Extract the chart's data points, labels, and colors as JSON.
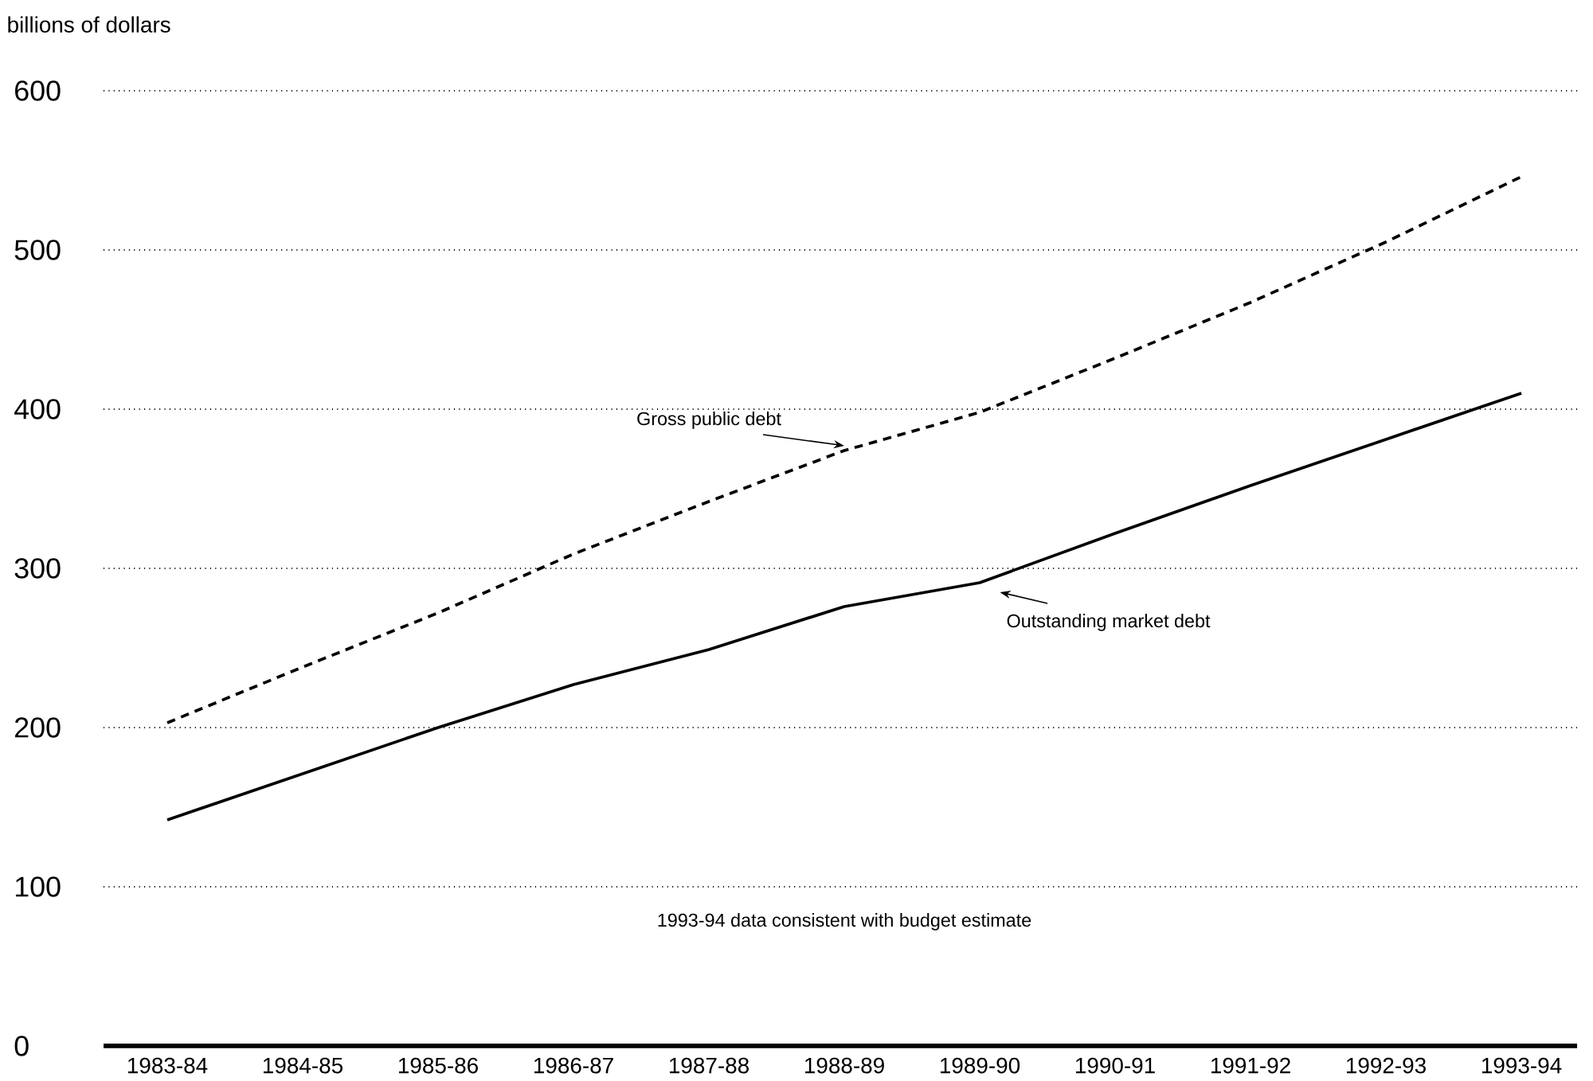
{
  "chart_data": {
    "type": "line",
    "ylabel": "billions of dollars",
    "categories": [
      "1983-84",
      "1984-85",
      "1985-86",
      "1986-87",
      "1987-88",
      "1988-89",
      "1989-90",
      "1990-91",
      "1991-92",
      "1992-93",
      "1993-94"
    ],
    "series": [
      {
        "name": "Gross public debt",
        "color": "#000000",
        "line_style": "dashed",
        "values": [
          203,
          238,
          272,
          309,
          342,
          374,
          398,
          432,
          467,
          505,
          546
        ]
      },
      {
        "name": "Outstanding market debt",
        "color": "#000000",
        "line_style": "solid",
        "values": [
          142,
          171,
          200,
          227,
          249,
          276,
          291,
          322,
          352,
          381,
          410
        ]
      }
    ],
    "ylim": [
      0,
      600
    ],
    "yticks": [
      0,
      100,
      200,
      300,
      400,
      500,
      600
    ],
    "grid": "y",
    "marker": "none",
    "annotations": [
      "1993-94 data consistent with budget estimate"
    ]
  }
}
